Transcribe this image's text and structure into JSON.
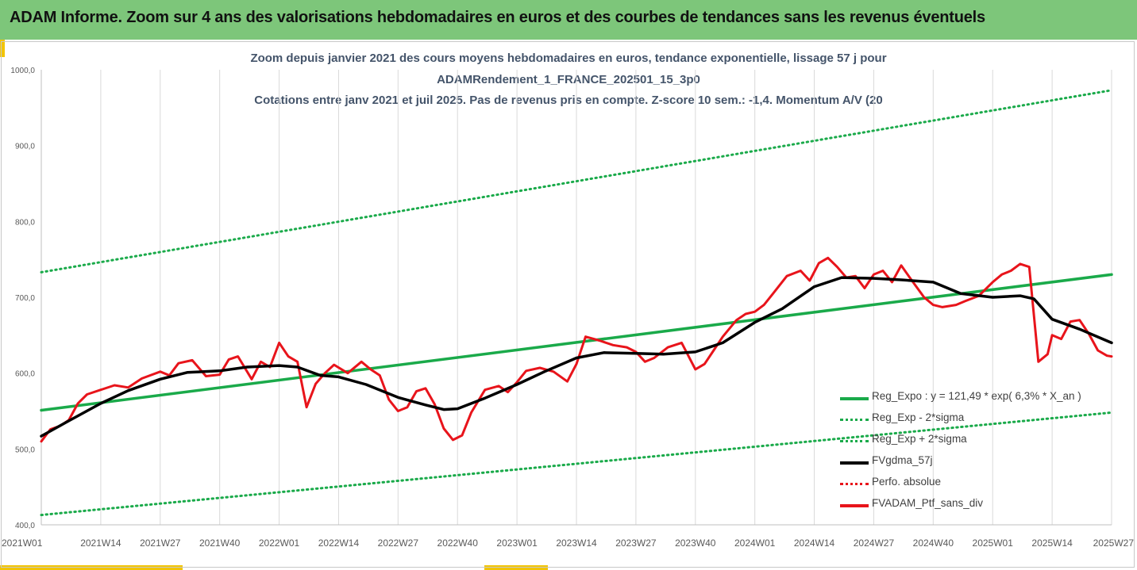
{
  "header": {
    "title": "ADAM Informe. Zoom sur 4 ans des valorisations hebdomadaires en euros et des courbes de tendances sans les revenus éventuels"
  },
  "chart_title_lines": [
    "Zoom depuis janvier 2021 des cours moyens hebdomadaires  en euros, tendance exponentielle, lissage 57 j pour",
    "ADAMRendement_1_FRANCE_202501_15_3p0",
    "Cotations entre janv 2021 et juil 2025. Pas de revenus pris en compte. Z-score 10 sem.: -1,4. Momentum A/V (20"
  ],
  "colors": {
    "header_bg": "#7dc67a",
    "accent": "#f2c400",
    "green": "#1aaa4a",
    "black": "#000000",
    "red": "#e8141b",
    "axis_text": "#595959"
  },
  "chart_data": {
    "type": "line",
    "title": "",
    "xlabel": "",
    "ylabel": "",
    "ylim": [
      400,
      1000
    ],
    "yticks": [
      "400,0",
      "500,0",
      "600,0",
      "700,0",
      "800,0",
      "900,0",
      "1000,0"
    ],
    "xticks": [
      "2021W01",
      "2021W14",
      "2021W27",
      "2021W40",
      "2022W01",
      "2022W14",
      "2022W27",
      "2022W40",
      "2023W01",
      "2023W14",
      "2023W27",
      "2023W40",
      "2024W01",
      "2024W14",
      "2024W27",
      "2024W40",
      "2025W01",
      "2025W14",
      "2025W27"
    ],
    "grid": "vertical",
    "legend_position": "bottom-right",
    "series": [
      {
        "name": "Reg_Expo : y = 121,49 * exp( 6,3% *  X_an )",
        "style": "solid-green",
        "x": [
          "2021W01",
          "2025W27"
        ],
        "values": [
          551,
          730
        ]
      },
      {
        "name": "Reg_Exp - 2*sigma",
        "style": "dotted-green",
        "x": [
          "2021W01",
          "2025W27"
        ],
        "values": [
          413,
          548
        ]
      },
      {
        "name": "Reg_Exp + 2*sigma",
        "style": "dotted-green",
        "x": [
          "2021W01",
          "2025W27"
        ],
        "values": [
          733,
          973
        ]
      },
      {
        "name": "FVgdma_57j",
        "style": "solid-black",
        "x": [
          "2021W01",
          "2021W07",
          "2021W14",
          "2021W20",
          "2021W27",
          "2021W33",
          "2021W40",
          "2021W46",
          "2022W01",
          "2022W05",
          "2022W10",
          "2022W14",
          "2022W20",
          "2022W27",
          "2022W33",
          "2022W37",
          "2022W40",
          "2022W46",
          "2023W01",
          "2023W07",
          "2023W14",
          "2023W20",
          "2023W27",
          "2023W33",
          "2023W40",
          "2023W46",
          "2024W01",
          "2024W07",
          "2024W14",
          "2024W20",
          "2024W27",
          "2024W33",
          "2024W40",
          "2024W46",
          "2025W01",
          "2025W07",
          "2025W10",
          "2025W14",
          "2025W20",
          "2025W27"
        ],
        "values": [
          517,
          537,
          560,
          577,
          592,
          601,
          603,
          608,
          610,
          608,
          597,
          595,
          585,
          568,
          558,
          552,
          553,
          567,
          585,
          602,
          620,
          627,
          626,
          625,
          628,
          640,
          667,
          685,
          714,
          726,
          725,
          723,
          720,
          705,
          700,
          702,
          698,
          671,
          658,
          640
        ]
      },
      {
        "name": "Perfo. absolue",
        "style": "dotted-red",
        "x": [],
        "values": []
      },
      {
        "name": "FVADAM_Ptf_sans_div",
        "style": "solid-red",
        "x": [
          "2021W01",
          "2021W03",
          "2021W05",
          "2021W07",
          "2021W09",
          "2021W11",
          "2021W14",
          "2021W17",
          "2021W20",
          "2021W23",
          "2021W27",
          "2021W29",
          "2021W31",
          "2021W34",
          "2021W37",
          "2021W40",
          "2021W42",
          "2021W44",
          "2021W47",
          "2021W49",
          "2021W51",
          "2022W01",
          "2022W03",
          "2022W05",
          "2022W07",
          "2022W09",
          "2022W11",
          "2022W13",
          "2022W16",
          "2022W19",
          "2022W21",
          "2022W23",
          "2022W25",
          "2022W27",
          "2022W29",
          "2022W31",
          "2022W33",
          "2022W35",
          "2022W37",
          "2022W39",
          "2022W41",
          "2022W43",
          "2022W46",
          "2022W49",
          "2022W51",
          "2023W01",
          "2023W03",
          "2023W06",
          "2023W09",
          "2023W12",
          "2023W14",
          "2023W16",
          "2023W19",
          "2023W22",
          "2023W25",
          "2023W27",
          "2023W29",
          "2023W31",
          "2023W34",
          "2023W37",
          "2023W40",
          "2023W42",
          "2023W44",
          "2023W46",
          "2023W49",
          "2023W51",
          "2024W01",
          "2024W03",
          "2024W05",
          "2024W08",
          "2024W11",
          "2024W13",
          "2024W15",
          "2024W17",
          "2024W19",
          "2024W21",
          "2024W23",
          "2024W25",
          "2024W27",
          "2024W29",
          "2024W31",
          "2024W33",
          "2024W35",
          "2024W38",
          "2024W40",
          "2024W42",
          "2024W45",
          "2024W47",
          "2024W50",
          "2025W01",
          "2025W03",
          "2025W05",
          "2025W07",
          "2025W09",
          "2025W11",
          "2025W13",
          "2025W14",
          "2025W16",
          "2025W18",
          "2025W20",
          "2025W22",
          "2025W24",
          "2025W26",
          "2025W27"
        ],
        "values": [
          510,
          526,
          530,
          538,
          560,
          572,
          578,
          584,
          581,
          593,
          602,
          597,
          613,
          617,
          596,
          598,
          618,
          622,
          592,
          615,
          608,
          640,
          622,
          615,
          555,
          586,
          600,
          611,
          600,
          615,
          605,
          597,
          565,
          550,
          555,
          576,
          580,
          559,
          527,
          512,
          518,
          548,
          578,
          583,
          575,
          588,
          603,
          607,
          602,
          589,
          612,
          648,
          643,
          637,
          634,
          628,
          615,
          620,
          634,
          640,
          605,
          612,
          630,
          648,
          670,
          678,
          681,
          690,
          705,
          728,
          735,
          722,
          745,
          752,
          740,
          726,
          728,
          712,
          730,
          735,
          720,
          742,
          725,
          700,
          690,
          687,
          690,
          695,
          702,
          720,
          730,
          735,
          744,
          740,
          615,
          625,
          650,
          645,
          668,
          670,
          652,
          630,
          623,
          622
        ]
      }
    ]
  }
}
